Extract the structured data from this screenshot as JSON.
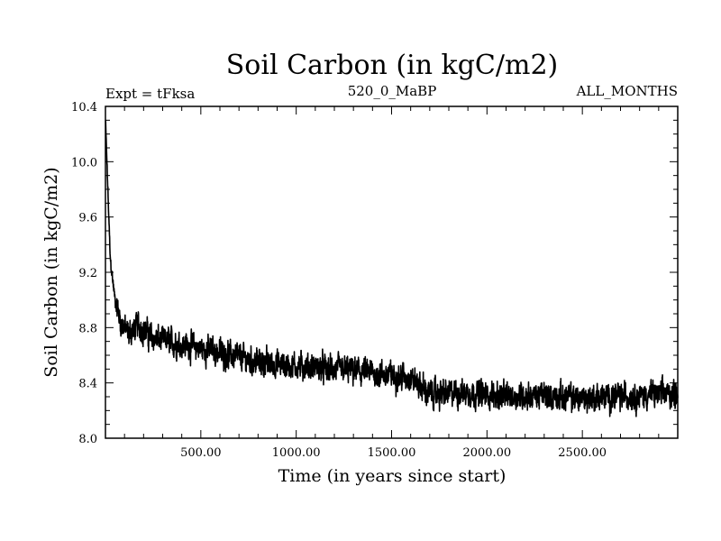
{
  "chart_data": {
    "type": "line",
    "title": "Soil Carbon (in kgC/m2)",
    "subtitle_left": "Expt = tFksa",
    "subtitle_center": "520_0_MaBP",
    "subtitle_right": "ALL_MONTHS",
    "xlabel": "Time (in years since start)",
    "ylabel": "Soil Carbon (in kgC/m2)",
    "xlim": [
      0,
      3000
    ],
    "ylim": [
      8.0,
      10.4
    ],
    "x_ticks": [
      500,
      1000,
      1500,
      2000,
      2500
    ],
    "x_tick_labels": [
      "500.00",
      "1000.00",
      "1500.00",
      "2000.00",
      "2500.00"
    ],
    "y_ticks": [
      8.0,
      8.4,
      8.8,
      9.2,
      9.6,
      10.0,
      10.4
    ],
    "y_tick_labels": [
      "8.0",
      "8.4",
      "8.8",
      "9.2",
      "9.6",
      "10.0",
      "10.4"
    ],
    "series": [
      {
        "name": "Soil Carbon",
        "color": "#000000",
        "trend": {
          "x": [
            0,
            10,
            25,
            50,
            80,
            120,
            170,
            250,
            400,
            600,
            800,
            1000,
            1200,
            1400,
            1600,
            1700,
            1900,
            2100,
            2300,
            2500,
            2700,
            3000
          ],
          "y": [
            10.3,
            9.9,
            9.3,
            9.0,
            8.85,
            8.75,
            8.82,
            8.72,
            8.68,
            8.62,
            8.55,
            8.52,
            8.5,
            8.47,
            8.44,
            8.32,
            8.33,
            8.3,
            8.31,
            8.29,
            8.3,
            8.33
          ]
        },
        "noise_amplitude": 0.12,
        "samples": 3000
      }
    ]
  }
}
